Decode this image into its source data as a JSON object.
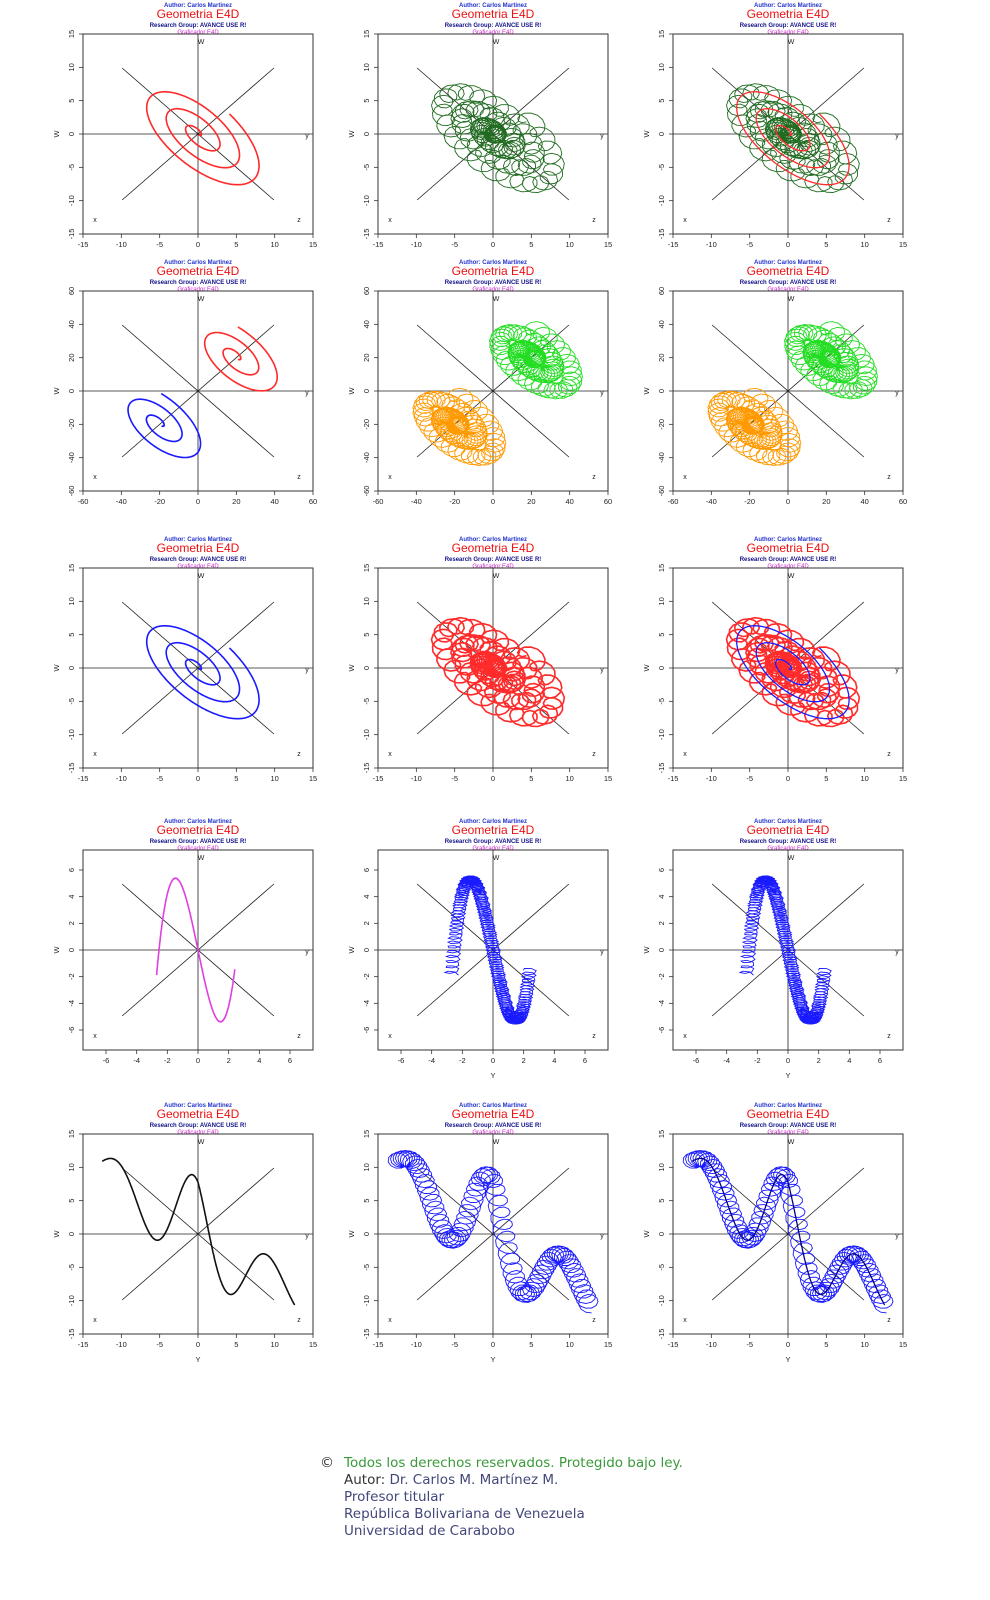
{
  "header": {
    "author": "Author: Carlos Martinez",
    "title": "Geometria E4D",
    "group": "Research Group: AVANCE USE R!",
    "sub": "Graficador E4D"
  },
  "axis_names": {
    "w": "W",
    "x": "x",
    "y": "y",
    "z": "z",
    "Y": "Y"
  },
  "colors": {
    "red": "#ff2a2a",
    "darkgreen": "#1f6b1f",
    "blue": "#1a1aff",
    "green": "#22dd22",
    "orange": "#ff9900",
    "violet": "#e040e0",
    "black": "#111111",
    "navy": "#00008b"
  },
  "chart_data": [
    {
      "type": "line",
      "xlim": [
        -15,
        15
      ],
      "ylim": [
        -15,
        15
      ],
      "ticks": [
        -15,
        -10,
        -5,
        0,
        5,
        10,
        15
      ],
      "kind": "spiral",
      "decor": "none",
      "spring": false,
      "series": [
        {
          "color": "#ff2a2a"
        }
      ]
    },
    {
      "type": "line",
      "xlim": [
        -15,
        15
      ],
      "ylim": [
        -15,
        15
      ],
      "ticks": [
        -15,
        -10,
        -5,
        0,
        5,
        10,
        15
      ],
      "kind": "spiral",
      "decor": "coil",
      "spring": false,
      "series": [
        {
          "color": "#1f6b1f"
        }
      ]
    },
    {
      "type": "line",
      "xlim": [
        -15,
        15
      ],
      "ylim": [
        -15,
        15
      ],
      "ticks": [
        -15,
        -10,
        -5,
        0,
        5,
        10,
        15
      ],
      "kind": "spiral",
      "decor": "coil+line",
      "spring": false,
      "series": [
        {
          "color": "#1f6b1f"
        },
        {
          "color": "#ff2a2a"
        }
      ]
    },
    {
      "type": "line",
      "xlim": [
        -60,
        60
      ],
      "ylim": [
        -60,
        60
      ],
      "ticks": [
        -60,
        -40,
        -20,
        0,
        20,
        40,
        60
      ],
      "kind": "twin",
      "decor": "none",
      "spring": false,
      "series": [
        {
          "color": "#ff2a2a",
          "center": [
            20,
            20
          ]
        },
        {
          "color": "#1a1aff",
          "center": [
            -20,
            -20
          ]
        }
      ]
    },
    {
      "type": "line",
      "xlim": [
        -60,
        60
      ],
      "ylim": [
        -60,
        60
      ],
      "ticks": [
        -60,
        -40,
        -20,
        0,
        20,
        40,
        60
      ],
      "kind": "twin",
      "decor": "coil",
      "spring": false,
      "series": [
        {
          "color": "#22dd22",
          "center": [
            20,
            20
          ]
        },
        {
          "color": "#ff9900",
          "center": [
            -20,
            -20
          ]
        }
      ]
    },
    {
      "type": "line",
      "xlim": [
        -60,
        60
      ],
      "ylim": [
        -60,
        60
      ],
      "ticks": [
        -60,
        -40,
        -20,
        0,
        20,
        40,
        60
      ],
      "kind": "twin",
      "decor": "coil+line",
      "spring": false,
      "series": [
        {
          "color": "#22dd22",
          "center": [
            20,
            20
          ]
        },
        {
          "color": "#ff9900",
          "center": [
            -20,
            -20
          ]
        }
      ]
    },
    {
      "type": "line",
      "xlim": [
        -15,
        15
      ],
      "ylim": [
        -15,
        15
      ],
      "ticks": [
        -15,
        -10,
        -5,
        0,
        5,
        10,
        15
      ],
      "kind": "spiral",
      "decor": "none",
      "spring": false,
      "series": [
        {
          "color": "#1a1aff"
        }
      ]
    },
    {
      "type": "line",
      "xlim": [
        -15,
        15
      ],
      "ylim": [
        -15,
        15
      ],
      "ticks": [
        -15,
        -10,
        -5,
        0,
        5,
        10,
        15
      ],
      "kind": "spiral",
      "decor": "dense",
      "spring": false,
      "series": [
        {
          "color": "#ff2a2a"
        }
      ]
    },
    {
      "type": "line",
      "xlim": [
        -15,
        15
      ],
      "ylim": [
        -15,
        15
      ],
      "ticks": [
        -15,
        -10,
        -5,
        0,
        5,
        10,
        15
      ],
      "kind": "spiral",
      "decor": "dense+line",
      "spring": false,
      "series": [
        {
          "color": "#ff2a2a"
        },
        {
          "color": "#1a1aff"
        }
      ]
    },
    {
      "type": "line",
      "xlim": [
        -7.5,
        7.5
      ],
      "ylim": [
        -7.5,
        7.5
      ],
      "ticks": [
        -6,
        -4,
        -2,
        0,
        2,
        4,
        6
      ],
      "kind": "cubic",
      "decor": "none",
      "spring": false,
      "series": [
        {
          "color": "#e040e0"
        }
      ]
    },
    {
      "type": "line",
      "xlim": [
        -7.5,
        7.5
      ],
      "ylim": [
        -7.5,
        7.5
      ],
      "ticks": [
        -6,
        -4,
        -2,
        0,
        2,
        4,
        6
      ],
      "kind": "cubic",
      "decor": "coil",
      "spring": true,
      "series": [
        {
          "color": "#1a1aff"
        }
      ]
    },
    {
      "type": "line",
      "xlim": [
        -7.5,
        7.5
      ],
      "ylim": [
        -7.5,
        7.5
      ],
      "ticks": [
        -6,
        -4,
        -2,
        0,
        2,
        4,
        6
      ],
      "kind": "cubic",
      "decor": "coil",
      "spring": true,
      "series": [
        {
          "color": "#1a1aff"
        }
      ]
    },
    {
      "type": "line",
      "xlim": [
        -15,
        15
      ],
      "ylim": [
        -15,
        15
      ],
      "ticks": [
        -15,
        -10,
        -5,
        0,
        5,
        10,
        15
      ],
      "kind": "wave",
      "decor": "none",
      "spring": false,
      "series": [
        {
          "color": "#111111"
        }
      ]
    },
    {
      "type": "line",
      "xlim": [
        -15,
        15
      ],
      "ylim": [
        -15,
        15
      ],
      "ticks": [
        -15,
        -10,
        -5,
        0,
        5,
        10,
        15
      ],
      "kind": "wave",
      "decor": "coil",
      "spring": false,
      "series": [
        {
          "color": "#1a1aff"
        }
      ]
    },
    {
      "type": "line",
      "xlim": [
        -15,
        15
      ],
      "ylim": [
        -15,
        15
      ],
      "ticks": [
        -15,
        -10,
        -5,
        0,
        5,
        10,
        15
      ],
      "kind": "wave",
      "decor": "coil+line",
      "spring": false,
      "series": [
        {
          "color": "#1a1aff"
        },
        {
          "color": "#00008b"
        }
      ]
    }
  ],
  "footer": {
    "copyright_symbol": "©",
    "rights": "Todos los derechos reservados. Protegido bajo ley.",
    "author_label": "Autor:",
    "author_name": "Dr. Carlos M. Martínez  M.",
    "position": "Profesor titular",
    "country": "República Bolivariana de Venezuela",
    "university": "Universidad de Carabobo"
  }
}
